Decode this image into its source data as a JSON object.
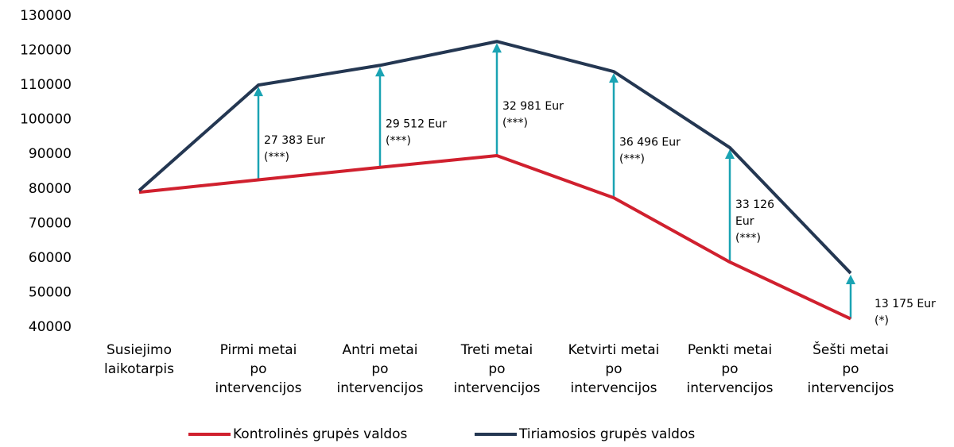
{
  "chart_data": {
    "type": "line",
    "categories": [
      [
        "Susiejimo",
        "laikotarpis"
      ],
      [
        "Pirmi metai",
        "po",
        "intervencijos"
      ],
      [
        "Antri metai",
        "po",
        "intervencijos"
      ],
      [
        "Treti metai",
        "po",
        "intervencijos"
      ],
      [
        "Ketvirti metai",
        "po",
        "intervencijos"
      ],
      [
        "Penkti metai",
        "po",
        "intervencijos"
      ],
      [
        "Šešti metai",
        "po",
        "intervencijos"
      ]
    ],
    "series": [
      {
        "name": "Kontrolinės grupės valdos",
        "color": "#d0202e",
        "values": [
          79000,
          82600,
          86200,
          89600,
          77400,
          58800,
          42400
        ]
      },
      {
        "name": "Tiriamosios grupės valdos",
        "color": "#243752",
        "values": [
          79500,
          110000,
          115700,
          122600,
          113900,
          91900,
          55600
        ]
      }
    ],
    "annotations": [
      [
        "27 383 Eur",
        "(***)"
      ],
      [
        "29 512 Eur",
        "(***)"
      ],
      [
        "32 981 Eur",
        "(***)"
      ],
      [
        "36 496 Eur",
        "(***)"
      ],
      [
        "33 126",
        "Eur",
        "(***)"
      ],
      [
        "13 175 Eur",
        "(*)"
      ]
    ],
    "arrow_color": "#1aa3b3",
    "ylim": [
      40000,
      130000
    ],
    "yticks": [
      40000,
      50000,
      60000,
      70000,
      80000,
      90000,
      100000,
      110000,
      120000,
      130000
    ],
    "grid": false,
    "legend": "bottom"
  }
}
